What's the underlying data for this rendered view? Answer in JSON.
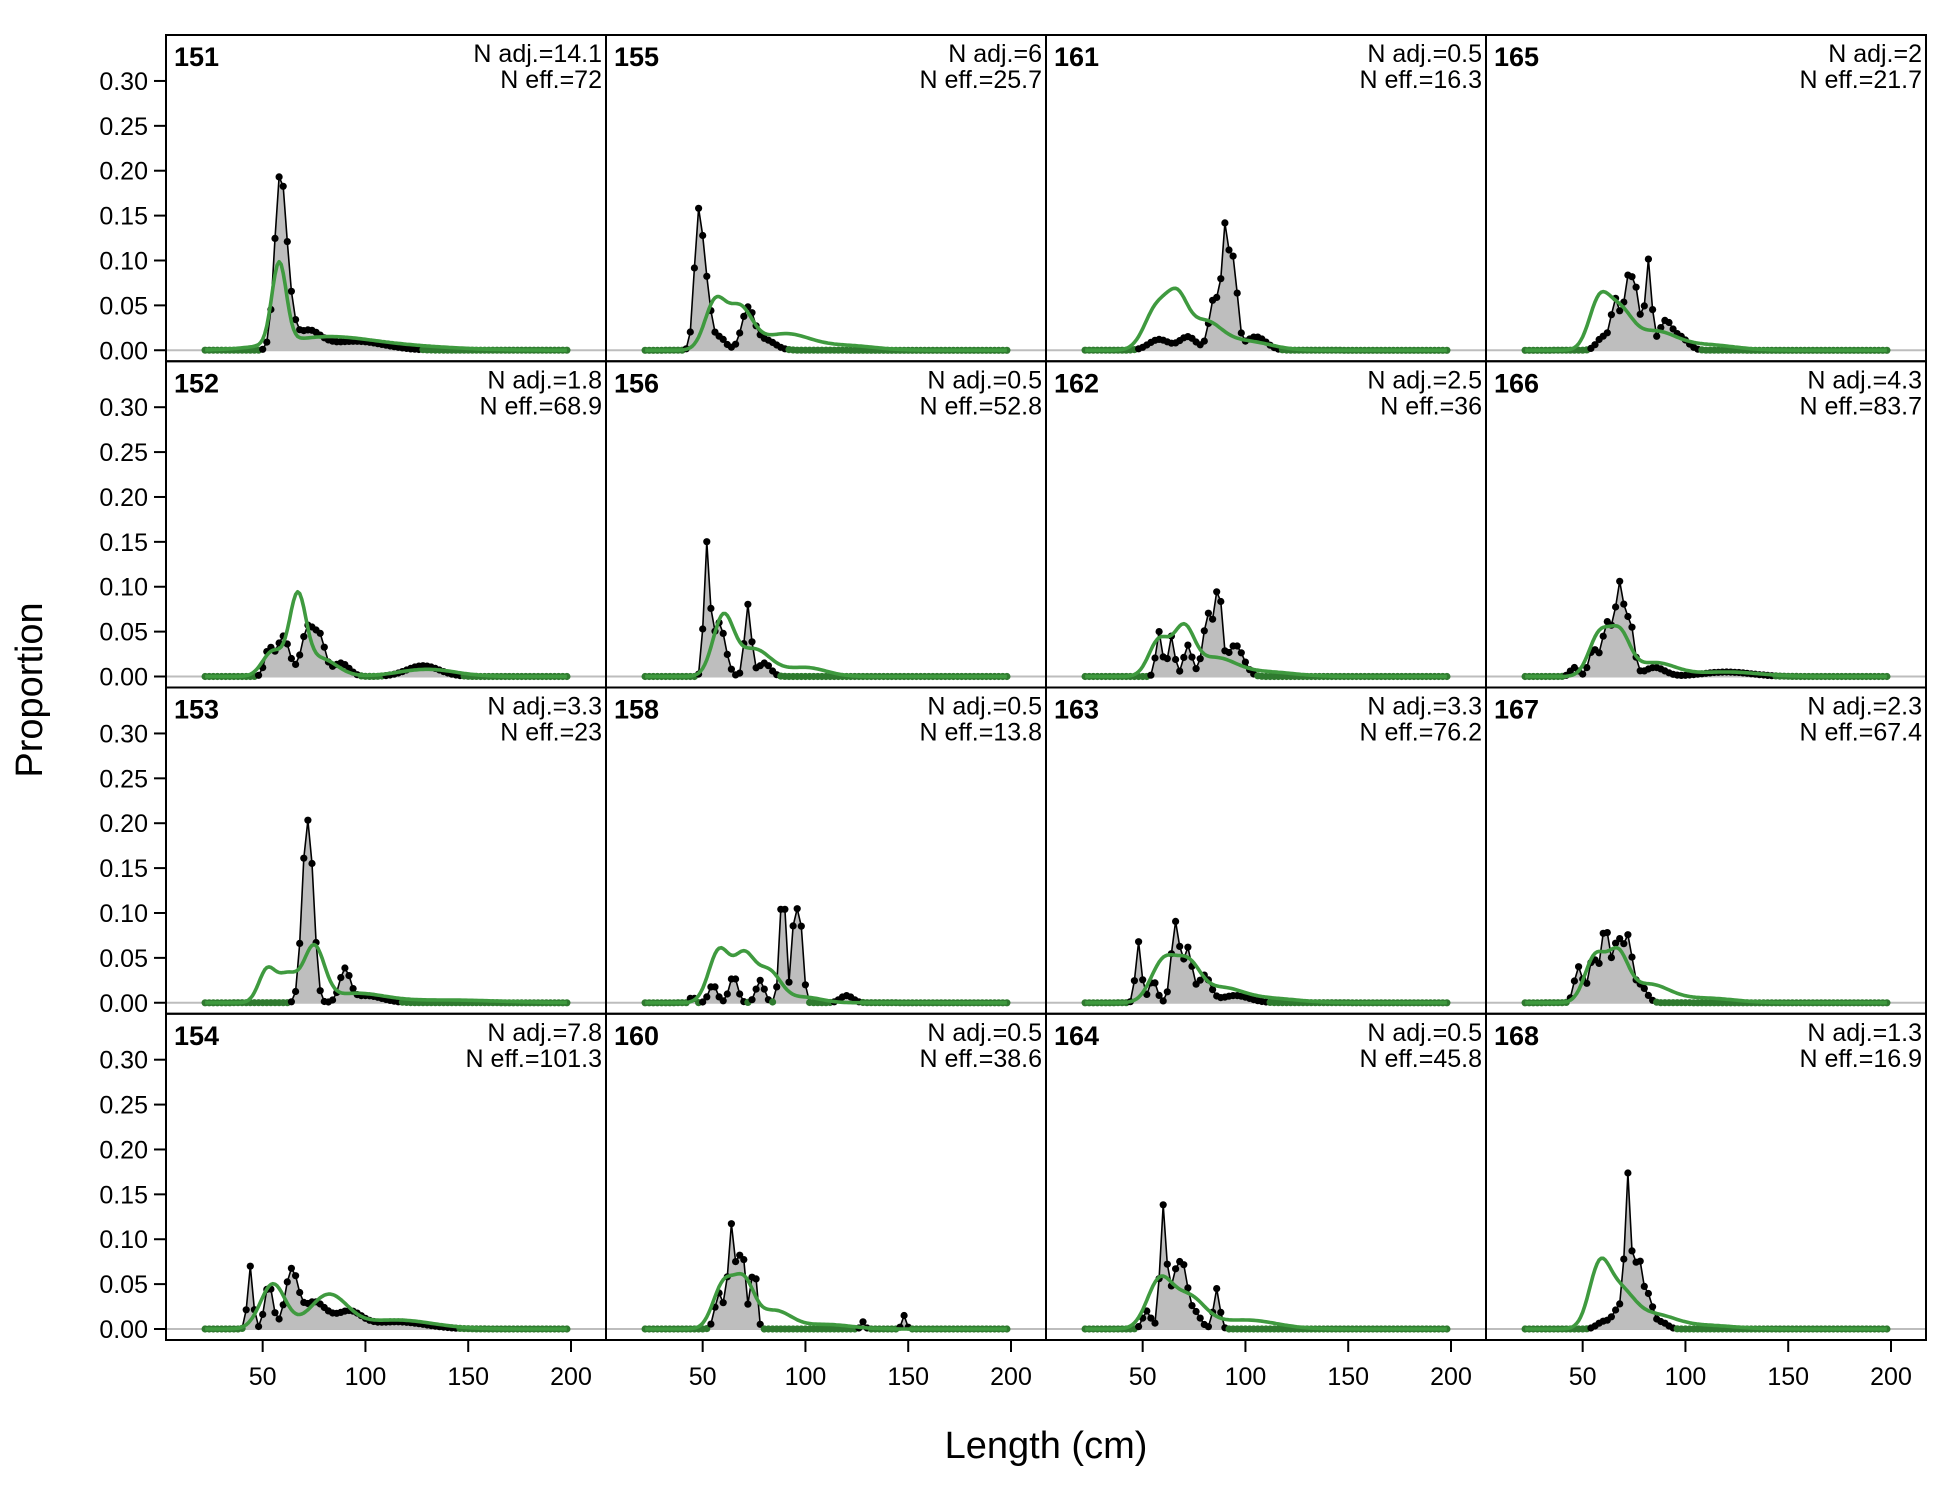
{
  "chart_data": {
    "type": "panel-grid",
    "xlabel": "Length (cm)",
    "ylabel": "Proportion",
    "xlim": [
      20,
      200
    ],
    "ylim": [
      0,
      0.32
    ],
    "x_ticks": [
      50,
      100,
      150,
      200
    ],
    "y_ticks": [
      0.0,
      0.05,
      0.1,
      0.15,
      0.2,
      0.25,
      0.3
    ],
    "y_tick_labels": [
      "0.00",
      "0.05",
      "0.10",
      "0.15",
      "0.20",
      "0.25",
      "0.30"
    ],
    "x_tick_labels": [
      "50",
      "100",
      "150",
      "200"
    ],
    "length_bins": {
      "start": 22,
      "end": 198,
      "step": 2
    },
    "colors": {
      "observed_fill": "#bebebe",
      "observed_line": "#000000",
      "expected_line": "#3f9a3f",
      "zero_line": "#bdbdbd",
      "points": "#000000"
    },
    "series_description": {
      "observed": "observed proportion (grey area with black points)",
      "expected": "expected proportion (green line)"
    },
    "panels": [
      {
        "id": "151",
        "n_adj": "N adj.=14.1",
        "n_eff": "N eff.=72",
        "row": 0,
        "col": 0,
        "obs_peaks": [
          [
            58,
            0.143,
            2.5
          ],
          [
            61,
            0.08,
            3
          ],
          [
            72,
            0.02,
            6
          ],
          [
            95,
            0.01,
            14
          ]
        ],
        "exp_peaks": [
          [
            58,
            0.09,
            3.5
          ],
          [
            80,
            0.014,
            22
          ],
          [
            120,
            0.004,
            25
          ]
        ]
      },
      {
        "id": "152",
        "n_adj": "N adj.=1.8",
        "n_eff": "N eff.=68.9",
        "row": 1,
        "col": 0,
        "obs_peaks": [
          [
            53,
            0.03,
            2
          ],
          [
            60,
            0.045,
            3
          ],
          [
            72,
            0.055,
            3
          ],
          [
            78,
            0.04,
            2.5
          ],
          [
            88,
            0.015,
            4
          ],
          [
            128,
            0.012,
            8
          ]
        ],
        "exp_peaks": [
          [
            55,
            0.028,
            5
          ],
          [
            67,
            0.085,
            4
          ],
          [
            78,
            0.02,
            8
          ],
          [
            130,
            0.008,
            14
          ]
        ]
      },
      {
        "id": "153",
        "n_adj": "N adj.=3.3",
        "n_eff": "N eff.=23",
        "row": 2,
        "col": 0,
        "obs_peaks": [
          [
            71,
            0.165,
            2.2
          ],
          [
            74,
            0.09,
            2
          ],
          [
            90,
            0.035,
            2.5
          ],
          [
            100,
            0.008,
            8
          ]
        ],
        "exp_peaks": [
          [
            52,
            0.035,
            4
          ],
          [
            62,
            0.03,
            5
          ],
          [
            75,
            0.06,
            5
          ],
          [
            95,
            0.01,
            14
          ],
          [
            140,
            0.003,
            25
          ]
        ]
      },
      {
        "id": "154",
        "n_adj": "N adj.=7.8",
        "n_eff": "N eff.=101.3",
        "row": 3,
        "col": 0,
        "obs_peaks": [
          [
            44,
            0.07,
            1.3
          ],
          [
            53,
            0.05,
            2
          ],
          [
            64,
            0.062,
            3
          ],
          [
            75,
            0.03,
            6
          ],
          [
            92,
            0.018,
            6
          ],
          [
            115,
            0.008,
            14
          ]
        ],
        "exp_peaks": [
          [
            55,
            0.05,
            6
          ],
          [
            82,
            0.037,
            9
          ],
          [
            115,
            0.01,
            18
          ]
        ]
      },
      {
        "id": "155",
        "n_adj": "N adj.=6",
        "n_eff": "N eff.=25.7",
        "row": 0,
        "col": 1,
        "obs_peaks": [
          [
            48,
            0.15,
            2
          ],
          [
            52,
            0.06,
            2
          ],
          [
            58,
            0.015,
            3
          ],
          [
            72,
            0.045,
            3
          ],
          [
            80,
            0.012,
            5
          ]
        ],
        "exp_peaks": [
          [
            56,
            0.052,
            5
          ],
          [
            68,
            0.045,
            6
          ],
          [
            90,
            0.018,
            12
          ],
          [
            120,
            0.005,
            14
          ]
        ]
      },
      {
        "id": "156",
        "n_adj": "N adj.=0.5",
        "n_eff": "N eff.=52.8",
        "row": 1,
        "col": 1,
        "obs_peaks": [
          [
            52,
            0.142,
            1.4
          ],
          [
            58,
            0.06,
            3
          ],
          [
            72,
            0.08,
            1.6
          ],
          [
            80,
            0.015,
            3
          ]
        ],
        "exp_peaks": [
          [
            60,
            0.065,
            5
          ],
          [
            75,
            0.03,
            8
          ],
          [
            100,
            0.01,
            10
          ]
        ]
      },
      {
        "id": "158",
        "n_adj": "N adj.=0.5",
        "n_eff": "N eff.=13.8",
        "row": 2,
        "col": 1,
        "obs_peaks": [
          [
            45,
            0.008,
            1
          ],
          [
            55,
            0.02,
            2
          ],
          [
            65,
            0.03,
            2
          ],
          [
            78,
            0.025,
            2
          ],
          [
            89,
            0.13,
            1.5
          ],
          [
            95,
            0.12,
            1.2
          ],
          [
            98,
            0.08,
            1.2
          ],
          [
            120,
            0.008,
            3
          ]
        ],
        "exp_peaks": [
          [
            58,
            0.058,
            5
          ],
          [
            70,
            0.05,
            5
          ],
          [
            82,
            0.035,
            6
          ],
          [
            100,
            0.006,
            8
          ]
        ]
      },
      {
        "id": "160",
        "n_adj": "N adj.=0.5",
        "n_eff": "N eff.=38.6",
        "row": 3,
        "col": 1,
        "obs_peaks": [
          [
            58,
            0.04,
            2
          ],
          [
            64,
            0.115,
            1.6
          ],
          [
            69,
            0.09,
            1.8
          ],
          [
            75,
            0.075,
            1.3
          ],
          [
            128,
            0.008,
            1
          ],
          [
            148,
            0.015,
            1
          ]
        ],
        "exp_peaks": [
          [
            60,
            0.048,
            5
          ],
          [
            70,
            0.05,
            5
          ],
          [
            85,
            0.02,
            8
          ],
          [
            110,
            0.005,
            12
          ]
        ]
      },
      {
        "id": "161",
        "n_adj": "N adj.=0.5",
        "n_eff": "N eff.=16.3",
        "row": 0,
        "col": 2,
        "obs_peaks": [
          [
            58,
            0.012,
            5
          ],
          [
            72,
            0.015,
            4
          ],
          [
            85,
            0.06,
            2.5
          ],
          [
            90,
            0.12,
            1.5
          ],
          [
            94,
            0.1,
            2
          ],
          [
            105,
            0.015,
            5
          ]
        ],
        "exp_peaks": [
          [
            57,
            0.047,
            6
          ],
          [
            67,
            0.048,
            5
          ],
          [
            80,
            0.03,
            8
          ],
          [
            100,
            0.01,
            12
          ]
        ]
      },
      {
        "id": "162",
        "n_adj": "N adj.=2.5",
        "n_eff": "N eff.=36",
        "row": 1,
        "col": 2,
        "obs_peaks": [
          [
            58,
            0.05,
            1.5
          ],
          [
            64,
            0.045,
            1.5
          ],
          [
            72,
            0.035,
            2
          ],
          [
            82,
            0.07,
            2.5
          ],
          [
            87,
            0.09,
            1.5
          ],
          [
            95,
            0.035,
            4
          ]
        ],
        "exp_peaks": [
          [
            58,
            0.04,
            5
          ],
          [
            70,
            0.05,
            5
          ],
          [
            85,
            0.02,
            10
          ],
          [
            110,
            0.005,
            14
          ]
        ]
      },
      {
        "id": "163",
        "n_adj": "N adj.=3.3",
        "n_eff": "N eff.=76.2",
        "row": 2,
        "col": 2,
        "obs_peaks": [
          [
            48,
            0.068,
            1.4
          ],
          [
            55,
            0.025,
            2
          ],
          [
            66,
            0.09,
            2
          ],
          [
            72,
            0.06,
            2
          ],
          [
            80,
            0.03,
            3
          ],
          [
            95,
            0.008,
            7
          ]
        ],
        "exp_peaks": [
          [
            60,
            0.045,
            6
          ],
          [
            72,
            0.04,
            6
          ],
          [
            88,
            0.015,
            10
          ],
          [
            110,
            0.005,
            15
          ]
        ]
      },
      {
        "id": "164",
        "n_adj": "N adj.=0.5",
        "n_eff": "N eff.=45.8",
        "row": 3,
        "col": 2,
        "obs_peaks": [
          [
            52,
            0.02,
            2
          ],
          [
            60,
            0.135,
            1.5
          ],
          [
            66,
            0.06,
            2.5
          ],
          [
            70,
            0.05,
            2
          ],
          [
            75,
            0.02,
            3
          ],
          [
            86,
            0.045,
            1.5
          ]
        ],
        "exp_peaks": [
          [
            58,
            0.05,
            6
          ],
          [
            72,
            0.035,
            8
          ],
          [
            100,
            0.01,
            15
          ]
        ]
      },
      {
        "id": "165",
        "n_adj": "N adj.=2",
        "n_eff": "N eff.=21.7",
        "row": 0,
        "col": 3,
        "obs_peaks": [
          [
            60,
            0.015,
            3
          ],
          [
            66,
            0.055,
            2
          ],
          [
            72,
            0.075,
            2
          ],
          [
            76,
            0.06,
            2
          ],
          [
            82,
            0.1,
            1.5
          ],
          [
            90,
            0.03,
            3
          ],
          [
            97,
            0.015,
            4
          ]
        ],
        "exp_peaks": [
          [
            58,
            0.052,
            5
          ],
          [
            68,
            0.04,
            6
          ],
          [
            85,
            0.02,
            10
          ],
          [
            110,
            0.006,
            14
          ]
        ]
      },
      {
        "id": "166",
        "n_adj": "N adj.=4.3",
        "n_eff": "N eff.=83.7",
        "row": 1,
        "col": 3,
        "obs_peaks": [
          [
            46,
            0.01,
            2
          ],
          [
            55,
            0.03,
            2
          ],
          [
            62,
            0.06,
            2.5
          ],
          [
            68,
            0.1,
            2
          ],
          [
            73,
            0.06,
            2
          ],
          [
            85,
            0.01,
            5
          ],
          [
            120,
            0.005,
            12
          ]
        ],
        "exp_peaks": [
          [
            58,
            0.045,
            5
          ],
          [
            68,
            0.045,
            5
          ],
          [
            85,
            0.015,
            10
          ],
          [
            120,
            0.005,
            16
          ]
        ]
      },
      {
        "id": "167",
        "n_adj": "N adj.=2.3",
        "n_eff": "N eff.=67.4",
        "row": 2,
        "col": 3,
        "obs_peaks": [
          [
            48,
            0.04,
            2
          ],
          [
            55,
            0.05,
            2
          ],
          [
            61,
            0.085,
            2
          ],
          [
            67,
            0.07,
            2
          ],
          [
            72,
            0.07,
            2
          ],
          [
            78,
            0.02,
            3
          ]
        ],
        "exp_peaks": [
          [
            56,
            0.05,
            5
          ],
          [
            67,
            0.05,
            5
          ],
          [
            82,
            0.02,
            10
          ],
          [
            110,
            0.005,
            14
          ]
        ]
      },
      {
        "id": "168",
        "n_adj": "N adj.=1.3",
        "n_eff": "N eff.=16.9",
        "row": 3,
        "col": 3,
        "obs_peaks": [
          [
            60,
            0.008,
            3
          ],
          [
            68,
            0.025,
            3
          ],
          [
            72,
            0.16,
            1.4
          ],
          [
            77,
            0.08,
            2
          ],
          [
            82,
            0.035,
            2
          ],
          [
            88,
            0.008,
            3
          ]
        ],
        "exp_peaks": [
          [
            58,
            0.062,
            5
          ],
          [
            68,
            0.04,
            7
          ],
          [
            85,
            0.015,
            10
          ],
          [
            110,
            0.004,
            14
          ]
        ]
      }
    ]
  }
}
